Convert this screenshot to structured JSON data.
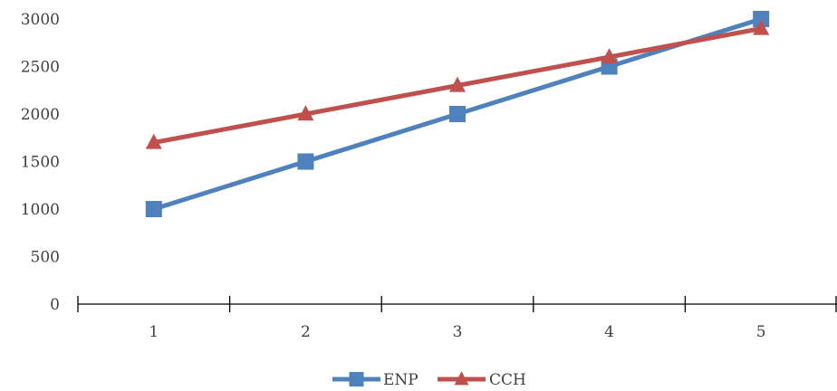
{
  "chart_data": {
    "type": "line",
    "title": "",
    "xlabel": "",
    "ylabel": "",
    "categories": [
      "1",
      "2",
      "3",
      "4",
      "5"
    ],
    "ylim": [
      0,
      3000
    ],
    "y_ticks": [
      0,
      500,
      1000,
      1500,
      2000,
      2500,
      3000
    ],
    "y_tick_labels": [
      "0",
      "500",
      "1000",
      "1500",
      "2000",
      "2500",
      "3000"
    ],
    "grid": false,
    "legend_position": "bottom",
    "series": [
      {
        "name": "ENP",
        "values": [
          1000,
          1500,
          2000,
          2500,
          3000
        ],
        "color": "#4F81BD",
        "marker": "square"
      },
      {
        "name": "CCH",
        "values": [
          1700,
          2000,
          2300,
          2600,
          2900
        ],
        "color": "#C0504D",
        "marker": "triangle"
      }
    ]
  }
}
